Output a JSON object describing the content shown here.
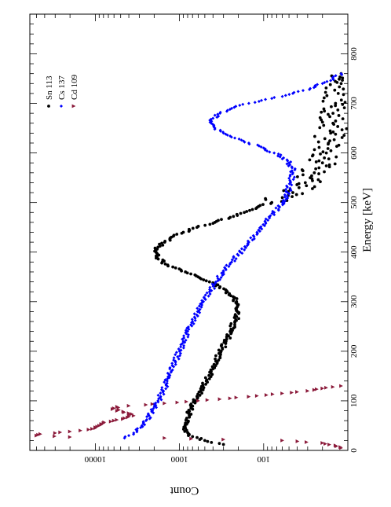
{
  "chart_data": {
    "type": "scatter",
    "orientation": "rotated 90 degrees clockwise (x axis runs bottom-to-top, y axis right-to-left)",
    "xlabel": "Energy [keV]",
    "ylabel": "Count",
    "xlim": [
      0,
      880
    ],
    "ylim": [
      10,
      60000
    ],
    "yscale": "log",
    "x_ticks": [
      "0",
      "100",
      "200",
      "300",
      "400",
      "500",
      "600",
      "700",
      "800"
    ],
    "y_ticks": [
      "10000",
      "1000",
      "100"
    ],
    "grid": false,
    "legend_position": "top-left (in rotated view)",
    "series": [
      {
        "name": "Sn 113",
        "color": "#000000",
        "marker": "circle",
        "x": [
          12,
          20,
          28,
          36,
          45,
          55,
          65,
          75,
          85,
          100,
          120,
          140,
          160,
          180,
          200,
          220,
          240,
          260,
          270,
          280,
          290,
          300,
          310,
          320,
          330,
          340,
          350,
          360,
          370,
          380,
          390,
          400,
          410,
          420,
          430,
          440,
          450,
          460,
          470,
          480,
          490,
          500,
          510,
          520,
          530,
          540,
          550,
          560,
          570,
          580,
          590,
          600,
          620,
          640,
          660,
          680,
          700,
          720,
          740,
          760
        ],
        "y": [
          300,
          500,
          700,
          800,
          850,
          850,
          820,
          780,
          730,
          640,
          560,
          480,
          420,
          370,
          320,
          280,
          250,
          220,
          210,
          205,
          205,
          210,
          230,
          270,
          330,
          440,
          600,
          850,
          1200,
          1600,
          1850,
          1900,
          1800,
          1500,
          1250,
          900,
          620,
          380,
          250,
          170,
          120,
          80,
          60,
          45,
          38,
          32,
          28,
          25,
          22,
          20,
          19,
          18,
          17,
          16,
          15,
          15,
          14,
          13,
          12,
          12
        ]
      },
      {
        "name": "Cs 137",
        "color": "#0000ff",
        "marker": "diamond",
        "x": [
          25,
          30,
          35,
          40,
          50,
          60,
          70,
          80,
          100,
          120,
          140,
          160,
          180,
          200,
          220,
          240,
          260,
          280,
          300,
          320,
          340,
          360,
          380,
          400,
          420,
          440,
          460,
          480,
          500,
          520,
          540,
          560,
          570,
          580,
          590,
          600,
          610,
          620,
          630,
          640,
          650,
          660,
          670,
          680,
          690,
          700,
          710,
          720,
          730,
          740,
          750,
          760
        ],
        "y": [
          4500,
          4000,
          3500,
          3200,
          2800,
          2500,
          2300,
          2100,
          1800,
          1550,
          1400,
          1250,
          1120,
          1000,
          900,
          800,
          700,
          610,
          520,
          440,
          370,
          300,
          240,
          190,
          150,
          120,
          95,
          75,
          60,
          52,
          48,
          45,
          46,
          50,
          58,
          75,
          100,
          150,
          220,
          300,
          380,
          420,
          400,
          330,
          240,
          150,
          80,
          45,
          28,
          20,
          15,
          12
        ]
      },
      {
        "name": "Cd 109",
        "color": "#8b1a3a",
        "marker": "triangle",
        "x": [
          5,
          10,
          15,
          20,
          22,
          25,
          27,
          30,
          33,
          35,
          38,
          40,
          42,
          45,
          48,
          50,
          55,
          60,
          65,
          70,
          75,
          80,
          85,
          88,
          90,
          92,
          95,
          100,
          105,
          110,
          115,
          118,
          120,
          122,
          125,
          128,
          130
        ],
        "y": [
          12,
          14,
          20,
          60,
          300,
          1500,
          20000,
          50000,
          45000,
          30000,
          20000,
          15000,
          12000,
          10000,
          9500,
          9000,
          8000,
          6000,
          4500,
          3500,
          4000,
          5500,
          6000,
          5500,
          4000,
          2500,
          1500,
          600,
          250,
          120,
          60,
          40,
          30,
          25,
          20,
          15,
          12
        ]
      }
    ]
  }
}
